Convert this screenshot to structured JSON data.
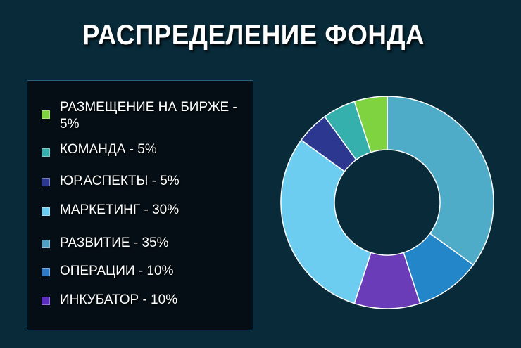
{
  "chart_data": {
    "type": "pie",
    "title": "РАСПРЕДЕЛЕНИЕ ФОНДА",
    "legend_position": "left",
    "categories": [
      "РАЗВИТИЕ - 35%",
      "ОПЕРАЦИИ - 10%",
      "ИНКУБАТОР - 10%",
      "МАРКЕТИНГ - 30%",
      "ЮР.АСПЕКТЫ - 5%",
      "КОМАНДА - 5%",
      "РАЗМЕЩЕНИЕ НА БИРЖЕ - 5%"
    ],
    "values": [
      35,
      10,
      10,
      30,
      5,
      5,
      5
    ],
    "colors": [
      "#4facc9",
      "#2286c8",
      "#6a3cb8",
      "#6dcdf0",
      "#2c3890",
      "#35b0ad",
      "#7fd340"
    ],
    "legend": [
      {
        "label": "РАЗМЕЩЕНИЕ НА БИРЖЕ - 5%",
        "color": "#7fd340"
      },
      {
        "label": "КОМАНДА - 5%",
        "color": "#35b0ad"
      },
      {
        "label": "ЮР.АСПЕКТЫ - 5%",
        "color": "#2c3890"
      },
      {
        "label": "МАРКЕТИНГ - 30%",
        "color": "#6dcdf0"
      },
      {
        "label": "РАЗВИТИЕ - 35%",
        "color": "#4fa0c2"
      },
      {
        "label": "ОПЕРАЦИИ - 10%",
        "color": "#2f78c4"
      },
      {
        "label": "ИНКУБАТОР - 10%",
        "color": "#5a2cc0"
      }
    ]
  },
  "background_color": "#082a39"
}
